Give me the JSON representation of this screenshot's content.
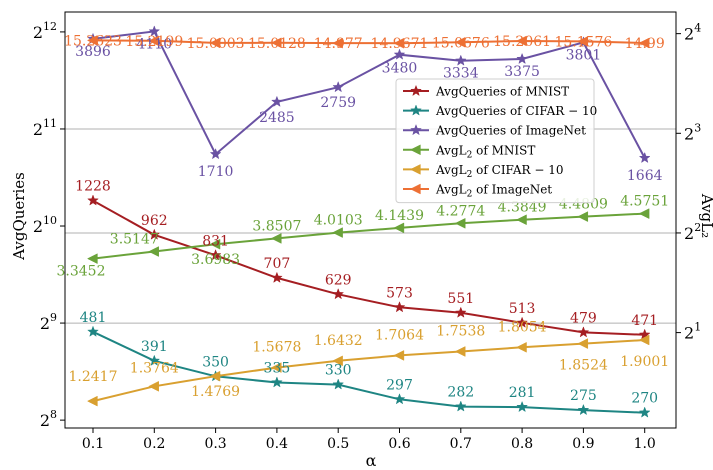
{
  "chart_data": {
    "type": "line",
    "xlabel": "α",
    "ylabel_left": "AvgQueries",
    "ylabel_right": "AvgL₂",
    "x": [
      "0.1",
      "0.2",
      "0.3",
      "0.4",
      "0.5",
      "0.6",
      "0.7",
      "0.8",
      "0.9",
      "1.0"
    ],
    "left_axis": {
      "scale": "log2",
      "range": [
        242,
        4722
      ],
      "ticks": [
        {
          "base": "2",
          "exp": "8",
          "value": 256
        },
        {
          "base": "2",
          "exp": "9",
          "value": 512
        },
        {
          "base": "2",
          "exp": "10",
          "value": 1024
        },
        {
          "base": "2",
          "exp": "11",
          "value": 2048
        },
        {
          "base": "2",
          "exp": "12",
          "value": 4096
        }
      ]
    },
    "right_axis": {
      "scale": "log2",
      "range": [
        1.03,
        18.6
      ],
      "ticks": [
        {
          "base": "2",
          "exp": "1",
          "value": 2
        },
        {
          "base": "2",
          "exp": "2",
          "value": 4
        },
        {
          "base": "2",
          "exp": "3",
          "value": 8
        },
        {
          "base": "2",
          "exp": "4",
          "value": 16
        }
      ]
    },
    "grid": {
      "horizontal_lines_at_left": [
        512,
        2048
      ],
      "horizontal_lines_at_right": [
        4
      ]
    },
    "legend_placement": "center-right",
    "series": [
      {
        "name": "AvgQueries of MNIST",
        "legend": {
          "pre": "AvgQueries of MNIST",
          "sub": "",
          "post": ""
        },
        "axis": "left",
        "marker": "star",
        "color": "#a51e22",
        "values": [
          1228,
          962,
          831,
          707,
          629,
          573,
          551,
          513,
          479,
          471
        ],
        "labels": [
          "1228",
          "962",
          "831",
          "707",
          "629",
          "573",
          "551",
          "513",
          "479",
          "471"
        ]
      },
      {
        "name": "AvgQueries of CIFAR−10",
        "legend": {
          "pre": "AvgQueries of CIFAR − 10",
          "sub": "",
          "post": ""
        },
        "axis": "left",
        "marker": "star",
        "color": "#1e8583",
        "values": [
          481,
          391,
          350,
          335,
          330,
          297,
          282,
          281,
          275,
          270
        ],
        "labels": [
          "481",
          "391",
          "350",
          "335",
          "330",
          "297",
          "282",
          "281",
          "275",
          "270"
        ]
      },
      {
        "name": "AvgQueries of ImageNet",
        "legend": {
          "pre": "AvgQueries of ImageNet",
          "sub": "",
          "post": ""
        },
        "axis": "left",
        "marker": "star",
        "color": "#6a52a3",
        "values": [
          3896,
          4110,
          1710,
          2485,
          2759,
          3480,
          3334,
          3375,
          3801,
          1664
        ],
        "labels": [
          "3896",
          "4110",
          "1710",
          "2485",
          "2759",
          "3480",
          "3334",
          "3375",
          "3801",
          "1664"
        ]
      },
      {
        "name": "AvgL2 of MNIST",
        "legend": {
          "pre": "AvgL",
          "sub": "2",
          "post": " of MNIST"
        },
        "axis": "right",
        "marker": "triangle-left",
        "color": "#6aa33a",
        "values": [
          3.3452,
          3.5147,
          3.6983,
          3.8507,
          4.0103,
          4.1439,
          4.2774,
          4.3849,
          4.4809,
          4.5751
        ],
        "labels": [
          "3.3452",
          "3.5147",
          "3.6983",
          "3.8507",
          "4.0103",
          "4.1439",
          "4.2774",
          "4.3849",
          "4.4809",
          "4.5751"
        ]
      },
      {
        "name": "AvgL2 of CIFAR−10",
        "legend": {
          "pre": "AvgL",
          "sub": "2",
          "post": " of CIFAR − 10"
        },
        "axis": "right",
        "marker": "triangle-left",
        "color": "#d9a030",
        "values": [
          1.2417,
          1.3764,
          1.4769,
          1.5678,
          1.6432,
          1.7064,
          1.7538,
          1.8054,
          1.8524,
          1.9001
        ],
        "labels": [
          "1.2417",
          "1.3764",
          "1.4769",
          "1.5678",
          "1.6432",
          "1.7064",
          "1.7538",
          "1.8054",
          "1.8524",
          "1.9001"
        ]
      },
      {
        "name": "AvgL2 of ImageNet",
        "legend": {
          "pre": "AvgL",
          "sub": "2",
          "post": " of ImageNet"
        },
        "axis": "right",
        "marker": "triangle-left",
        "color": "#ed7034",
        "values": [
          15.2623,
          15.2199,
          15.0003,
          15.0128,
          14.977,
          14.9671,
          15.0676,
          15.2061,
          15.1576,
          14.99
        ],
        "labels": [
          "15.2623",
          "15.2199",
          "15.0003",
          "15.0128",
          "14.977",
          "14.9671",
          "15.0676",
          "15.2061",
          "15.1576",
          "14.99"
        ]
      }
    ]
  }
}
